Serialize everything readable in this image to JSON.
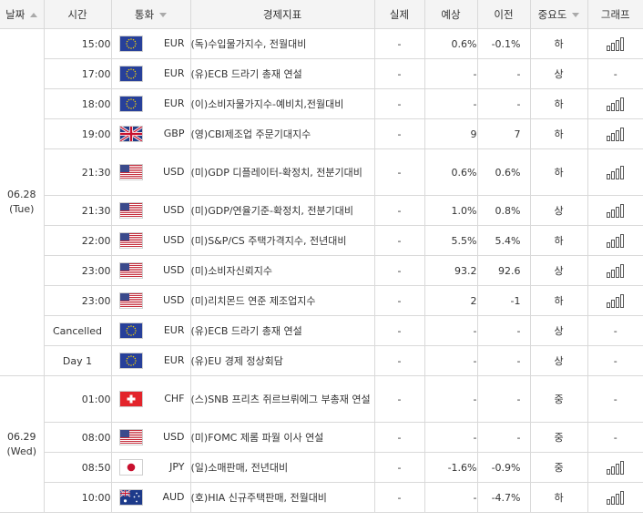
{
  "headers": {
    "date": "날짜",
    "time": "시간",
    "currency": "통화",
    "indicator": "경제지표",
    "actual": "실제",
    "forecast": "예상",
    "previous": "이전",
    "importance": "중요도",
    "graph": "그래프"
  },
  "groups": [
    {
      "date": "06.28",
      "day": "(Tue)",
      "rows": [
        {
          "time": "15:00",
          "flag": "eu-flag-icon",
          "currency": "EUR",
          "indicator": "(독)수입물가지수, 전월대비",
          "actual": "-",
          "forecast": "0.6%",
          "previous": "-0.1%",
          "importance": "하",
          "graph": "chart"
        },
        {
          "time": "17:00",
          "flag": "eu-flag-icon",
          "currency": "EUR",
          "indicator": "(유)ECB 드라기 총재 연설",
          "actual": "-",
          "forecast": "-",
          "previous": "-",
          "importance": "상",
          "graph": "-"
        },
        {
          "time": "18:00",
          "flag": "eu-flag-icon",
          "currency": "EUR",
          "indicator": "(이)소비자물가지수-예비치,전월대비",
          "actual": "-",
          "forecast": "-",
          "previous": "-",
          "importance": "하",
          "graph": "chart"
        },
        {
          "time": "19:00",
          "flag": "uk-flag-icon",
          "currency": "GBP",
          "indicator": "(영)CBI제조업 주문기대지수",
          "actual": "-",
          "forecast": "9",
          "previous": "7",
          "importance": "하",
          "graph": "chart"
        },
        {
          "time": "21:30",
          "flag": "us-flag-icon",
          "currency": "USD",
          "indicator": "(미)GDP 디플레이터-확정치, 전분기대비",
          "actual": "-",
          "forecast": "0.6%",
          "previous": "0.6%",
          "importance": "하",
          "graph": "chart",
          "tall": true
        },
        {
          "time": "21:30",
          "flag": "us-flag-icon",
          "currency": "USD",
          "indicator": "(미)GDP/연율기준-확정치, 전분기대비",
          "actual": "-",
          "forecast": "1.0%",
          "previous": "0.8%",
          "importance": "상",
          "graph": "chart"
        },
        {
          "time": "22:00",
          "flag": "us-flag-icon",
          "currency": "USD",
          "indicator": "(미)S&P/CS 주택가격지수, 전년대비",
          "actual": "-",
          "forecast": "5.5%",
          "previous": "5.4%",
          "importance": "하",
          "graph": "chart"
        },
        {
          "time": "23:00",
          "flag": "us-flag-icon",
          "currency": "USD",
          "indicator": "(미)소비자신뢰지수",
          "actual": "-",
          "forecast": "93.2",
          "previous": "92.6",
          "importance": "상",
          "graph": "chart"
        },
        {
          "time": "23:00",
          "flag": "us-flag-icon",
          "currency": "USD",
          "indicator": "(미)리치몬드 연준 제조업지수",
          "actual": "-",
          "forecast": "2",
          "previous": "-1",
          "importance": "하",
          "graph": "chart"
        },
        {
          "time": "Cancelled",
          "flag": "eu-flag-icon",
          "currency": "EUR",
          "indicator": "(유)ECB 드라기 총재 연설",
          "actual": "-",
          "forecast": "-",
          "previous": "-",
          "importance": "상",
          "graph": "-"
        },
        {
          "time": "Day 1",
          "flag": "eu-flag-icon",
          "currency": "EUR",
          "indicator": "(유)EU 경제 정상회담",
          "actual": "-",
          "forecast": "-",
          "previous": "-",
          "importance": "상",
          "graph": "-"
        }
      ]
    },
    {
      "date": "06.29",
      "day": "(Wed)",
      "rows": [
        {
          "time": "01:00",
          "flag": "swiss-flag-icon",
          "currency": "CHF",
          "indicator": "(스)SNB 프리츠 쥐르브뤼에그 부총재 연설",
          "actual": "-",
          "forecast": "-",
          "previous": "-",
          "importance": "중",
          "graph": "-",
          "tall": true
        },
        {
          "time": "08:00",
          "flag": "us-flag-icon",
          "currency": "USD",
          "indicator": "(미)FOMC 제롬 파월 이사 연설",
          "actual": "-",
          "forecast": "-",
          "previous": "-",
          "importance": "중",
          "graph": "-"
        },
        {
          "time": "08:50",
          "flag": "japan-flag-icon",
          "currency": "JPY",
          "indicator": "(일)소매판매, 전년대비",
          "actual": "-",
          "forecast": "-1.6%",
          "previous": "-0.9%",
          "importance": "중",
          "graph": "chart"
        },
        {
          "time": "10:00",
          "flag": "australia-flag-icon",
          "currency": "AUD",
          "indicator": "(호)HIA 신규주택판매, 전월대비",
          "actual": "-",
          "forecast": "-",
          "previous": "-4.7%",
          "importance": "하",
          "graph": "chart"
        }
      ]
    }
  ]
}
